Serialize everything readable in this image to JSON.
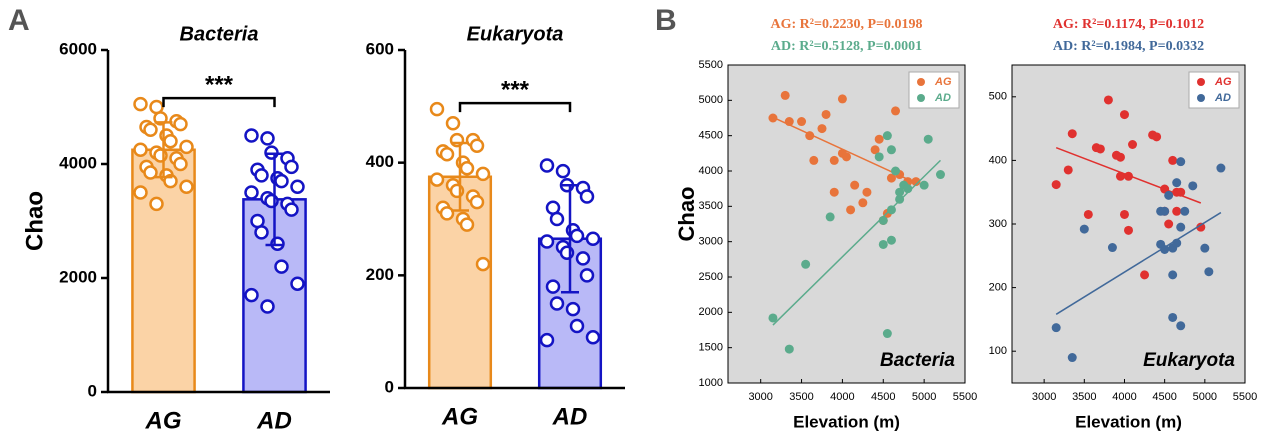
{
  "panels": [
    "A",
    "B"
  ],
  "chart_data": [
    {
      "type": "bar",
      "title": "Bacteria",
      "ylabel": "Chao",
      "categories": [
        "AG",
        "AD"
      ],
      "values": [
        4250,
        3380
      ],
      "errors": [
        480,
        800
      ],
      "colors": [
        "#fbd3a6",
        "#b9b9f7"
      ],
      "edge_colors": [
        "#e8891a",
        "#1414c4"
      ],
      "points": [
        [
          5050,
          5000,
          4800,
          4750,
          4700,
          4650,
          4600,
          4500,
          4400,
          4300,
          4250,
          4200,
          4150,
          4100,
          4000,
          3950,
          3850,
          3800,
          3700,
          3600,
          3500,
          3300
        ],
        [
          4500,
          4450,
          4200,
          4100,
          3950,
          3900,
          3800,
          3750,
          3700,
          3600,
          3500,
          3400,
          3350,
          3300,
          3200,
          3000,
          2800,
          2600,
          2200,
          1900,
          1700,
          1500
        ]
      ],
      "significance": "***",
      "ylim": [
        0,
        6000
      ],
      "yticks": [
        0,
        2000,
        4000,
        6000
      ]
    },
    {
      "type": "bar",
      "title": "Eukaryota",
      "categories": [
        "AG",
        "AD"
      ],
      "values": [
        375,
        265
      ],
      "errors": [
        60,
        95
      ],
      "colors": [
        "#fbd3a6",
        "#b9b9f7"
      ],
      "edge_colors": [
        "#e8891a",
        "#1414c4"
      ],
      "points": [
        [
          495,
          470,
          440,
          440,
          430,
          420,
          415,
          400,
          390,
          380,
          370,
          360,
          350,
          340,
          330,
          320,
          310,
          300,
          290,
          220
        ],
        [
          395,
          385,
          360,
          355,
          340,
          320,
          300,
          280,
          270,
          265,
          260,
          250,
          240,
          230,
          200,
          180,
          150,
          140,
          110,
          90,
          85
        ]
      ],
      "significance": "***",
      "ylim": [
        0,
        600
      ],
      "yticks": [
        0,
        200,
        400,
        600
      ]
    },
    {
      "type": "scatter",
      "label": "Bacteria",
      "xlabel": "Elevation (m)",
      "ylabel": "Chao",
      "xlim": [
        2600,
        5500
      ],
      "ylim": [
        1000,
        5500
      ],
      "xticks": [
        3000,
        3500,
        4000,
        4500,
        5000,
        5500
      ],
      "yticks": [
        1000,
        1500,
        2000,
        2500,
        3000,
        3500,
        4000,
        4500,
        5000,
        5500
      ],
      "series": [
        {
          "name": "AG",
          "color": "#e8743b",
          "annotation": "AG: R²=0.2230, P=0.0198",
          "x": [
            3150,
            3300,
            3350,
            3500,
            3600,
            3650,
            3750,
            3800,
            3900,
            3900,
            4000,
            4000,
            4050,
            4100,
            4150,
            4250,
            4300,
            4400,
            4450,
            4500,
            4550,
            4600,
            4650,
            4700,
            4800,
            4900
          ],
          "y": [
            4750,
            5070,
            4700,
            4700,
            4500,
            4150,
            4600,
            4800,
            3700,
            4150,
            4250,
            5020,
            4200,
            3450,
            3800,
            3550,
            3700,
            4300,
            4450,
            3300,
            3400,
            3900,
            4850,
            3950,
            3850,
            3850
          ],
          "fit": {
            "x": [
              3150,
              4900
            ],
            "y": [
              4760,
              3830
            ]
          }
        },
        {
          "name": "AD",
          "color": "#5bab8c",
          "annotation": "AD: R²=0.5128, P=0.0001",
          "x": [
            3150,
            3350,
            3550,
            3850,
            4450,
            4500,
            4550,
            4500,
            4550,
            4600,
            4600,
            4650,
            4700,
            4700,
            4750,
            4800,
            5000,
            5050,
            5200,
            4600
          ],
          "y": [
            1920,
            1480,
            2680,
            3350,
            4200,
            2960,
            1700,
            3300,
            4500,
            3450,
            3020,
            4000,
            3600,
            3700,
            3800,
            3750,
            3800,
            4450,
            3950,
            4300
          ],
          "fit": {
            "x": [
              3150,
              5200
            ],
            "y": [
              1820,
              4150
            ]
          }
        }
      ]
    },
    {
      "type": "scatter",
      "label": "Eukaryota",
      "xlabel": "Elevation (m)",
      "xlim": [
        2600,
        5500
      ],
      "ylim": [
        50,
        550
      ],
      "xticks": [
        3000,
        3500,
        4000,
        4500,
        5000,
        5500
      ],
      "yticks": [
        100,
        200,
        300,
        400,
        500
      ],
      "series": [
        {
          "name": "AG",
          "color": "#e0312f",
          "annotation": "AG: R²=0.1174, P=0.1012",
          "x": [
            3150,
            3300,
            3350,
            3550,
            3650,
            3700,
            3800,
            3900,
            3950,
            3950,
            4000,
            4000,
            4050,
            4050,
            4100,
            4250,
            4350,
            4400,
            4500,
            4500,
            4550,
            4600,
            4650,
            4650,
            4950,
            4700
          ],
          "y": [
            362,
            385,
            442,
            315,
            420,
            418,
            495,
            408,
            405,
            375,
            472,
            315,
            375,
            290,
            425,
            220,
            440,
            437,
            355,
            320,
            300,
            400,
            350,
            320,
            295,
            350
          ],
          "fit": {
            "x": [
              3150,
              4950
            ],
            "y": [
              420,
              333
            ]
          }
        },
        {
          "name": "AD",
          "color": "#41699a",
          "annotation": "AD: R²=0.1984, P=0.0332",
          "x": [
            3150,
            3350,
            3500,
            3850,
            4450,
            4450,
            4500,
            4550,
            4600,
            4600,
            4600,
            4650,
            4650,
            4700,
            4700,
            4700,
            4750,
            4850,
            5000,
            5050,
            5200,
            4500
          ],
          "y": [
            137,
            90,
            292,
            263,
            320,
            268,
            260,
            345,
            262,
            220,
            153,
            365,
            270,
            140,
            295,
            398,
            320,
            360,
            262,
            225,
            388,
            320
          ],
          "fit": {
            "x": [
              3150,
              5200
            ],
            "y": [
              158,
              318
            ]
          }
        }
      ]
    }
  ]
}
